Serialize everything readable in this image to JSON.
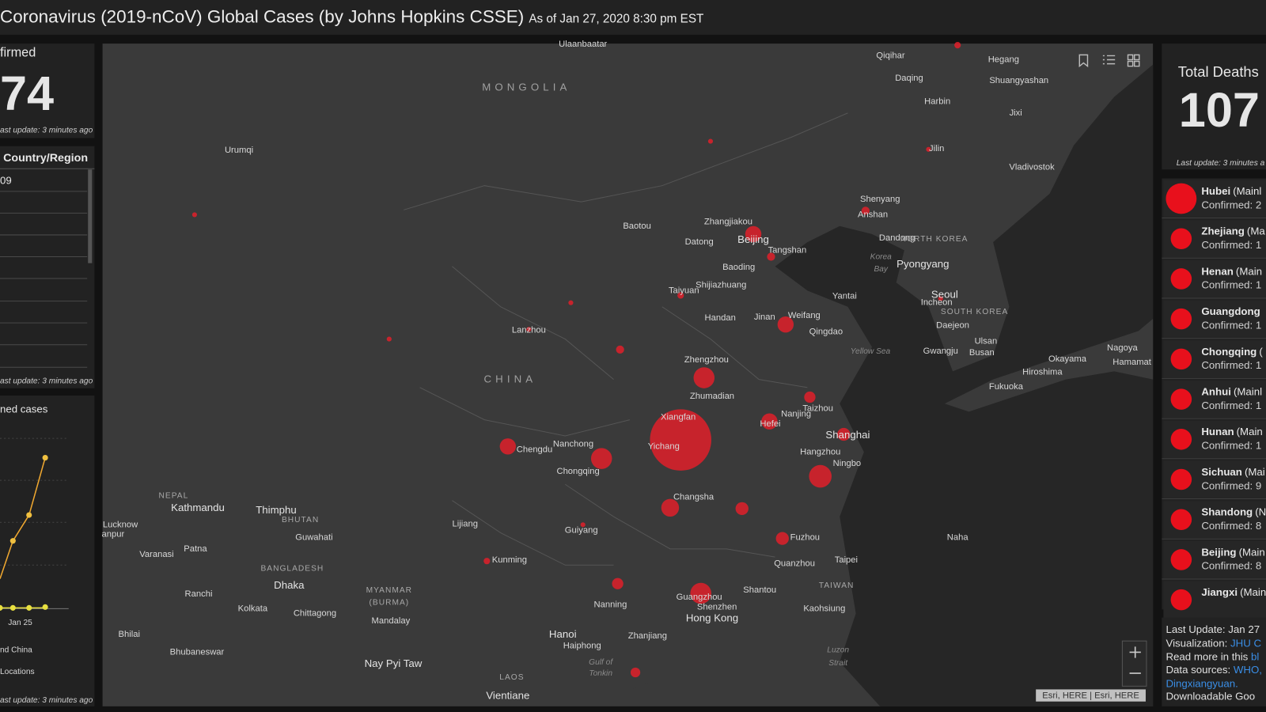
{
  "header": {
    "title": "Coronavirus (2019-nCoV) Global Cases (by Johns Hopkins CSSE)",
    "subtitle": "As of Jan 27, 2020 8:30 pm EST"
  },
  "confirmed_panel": {
    "label": "firmed",
    "value": "74",
    "update": "ast update: 3 minutes ago"
  },
  "country_panel": {
    "heading": "Country/Region",
    "first_row": "09",
    "update": "ast update: 3 minutes ago"
  },
  "chart_panel": {
    "label": "ned cases",
    "x_label": "Jan 25",
    "legend": [
      "nd China",
      "Locations"
    ],
    "update": "ast update: 3 minutes ago"
  },
  "deaths_panel": {
    "label": "Total Deaths",
    "value": "107",
    "update": "Last update: 3 minutes a"
  },
  "region_list": [
    {
      "name": "Hubei",
      "note": "(Mainl",
      "confirmed": "Confirmed: 2"
    },
    {
      "name": "Zhejiang",
      "note": "(Ma",
      "confirmed": "Confirmed: 1"
    },
    {
      "name": "Henan",
      "note": "(Main",
      "confirmed": "Confirmed: 1"
    },
    {
      "name": "Guangdong",
      "note": "",
      "confirmed": "Confirmed: 1"
    },
    {
      "name": "Chongqing",
      "note": "(",
      "confirmed": "Confirmed: 1"
    },
    {
      "name": "Anhui",
      "note": "(Mainl",
      "confirmed": "Confirmed: 1"
    },
    {
      "name": "Hunan",
      "note": "(Main",
      "confirmed": "Confirmed: 1"
    },
    {
      "name": "Sichuan",
      "note": "(Mai",
      "confirmed": "Confirmed: 9"
    },
    {
      "name": "Shandong",
      "note": "(N",
      "confirmed": "Confirmed: 8"
    },
    {
      "name": "Beijing",
      "note": "(Main",
      "confirmed": "Confirmed: 8"
    },
    {
      "name": "Jiangxi",
      "note": "(Main",
      "confirmed": ""
    }
  ],
  "info": {
    "last_update": "Last Update: Jan 27",
    "visualization": "Visualization:",
    "visualization_link": "JHU C",
    "read_more": "Read more in this",
    "read_more_link": "bl",
    "sources": "Data sources:",
    "sources_link": "WHO,",
    "sources_link2": "Dingxiangyuan.",
    "download": "Downloadable Goo"
  },
  "map": {
    "attribution": "Esri, HERE | Esri, HERE",
    "labels": [
      "Ulaanbaatar",
      "MONGOLIA",
      "Urumqi",
      "Baotou",
      "Zhangjiakou",
      "Datong",
      "Beijing",
      "Tangshan",
      "Baoding",
      "Shijiazhuang",
      "Taiyuan",
      "Handan",
      "Jinan",
      "Weifang",
      "Qingdao",
      "Yantai",
      "Lanzhou",
      "CHINA",
      "Zhengzhou",
      "Zhumadian",
      "Xiangfan",
      "Yichang",
      "Hefei",
      "Nanjing",
      "Taizhou",
      "Shanghai",
      "Hangzhou",
      "Ningbo",
      "Chengdu",
      "Nanchong",
      "Chongqing",
      "Changsha",
      "Fuzhou",
      "Quanzhou",
      "Taipei",
      "TAIWAN",
      "Kaohsiung",
      "Shantou",
      "Guangzhou",
      "Shenzhen",
      "Hong Kong",
      "Nanning",
      "Guiyang",
      "Kunming",
      "Lijiang",
      "Zhanjiang",
      "Hanoi",
      "Haiphong",
      "Gulf of",
      "Tonkin",
      "LAOS",
      "Vientiane",
      "Nay Pyi Taw",
      "MYANMAR",
      "(BURMA)",
      "Mandalay",
      "Chittagong",
      "Dhaka",
      "BANGLADESH",
      "Kolkata",
      "Ranchi",
      "Bhilai",
      "Bhubaneswar",
      "Varanasi",
      "Patna",
      "Lucknow",
      "anpur",
      "Kathmandu",
      "NEPAL",
      "Thimphu",
      "BHUTAN",
      "Guwahati",
      "Qiqihar",
      "Hegang",
      "Daqing",
      "Shuangyashan",
      "Harbin",
      "Jixi",
      "Jilin",
      "Vladivostok",
      "Shenyang",
      "Anshan",
      "Dandong",
      "NORTH KOREA",
      "Korea",
      "Bay",
      "Pyongyang",
      "Seoul",
      "Incheon",
      "SOUTH KOREA",
      "Daejeon",
      "Ulsan",
      "Busan",
      "Gwangju",
      "Yellow Sea",
      "Okayama",
      "Nagoya",
      "Hamamat",
      "Hiroshima",
      "Fukuoka",
      "Naha",
      "Luzon",
      "Strait"
    ]
  }
}
